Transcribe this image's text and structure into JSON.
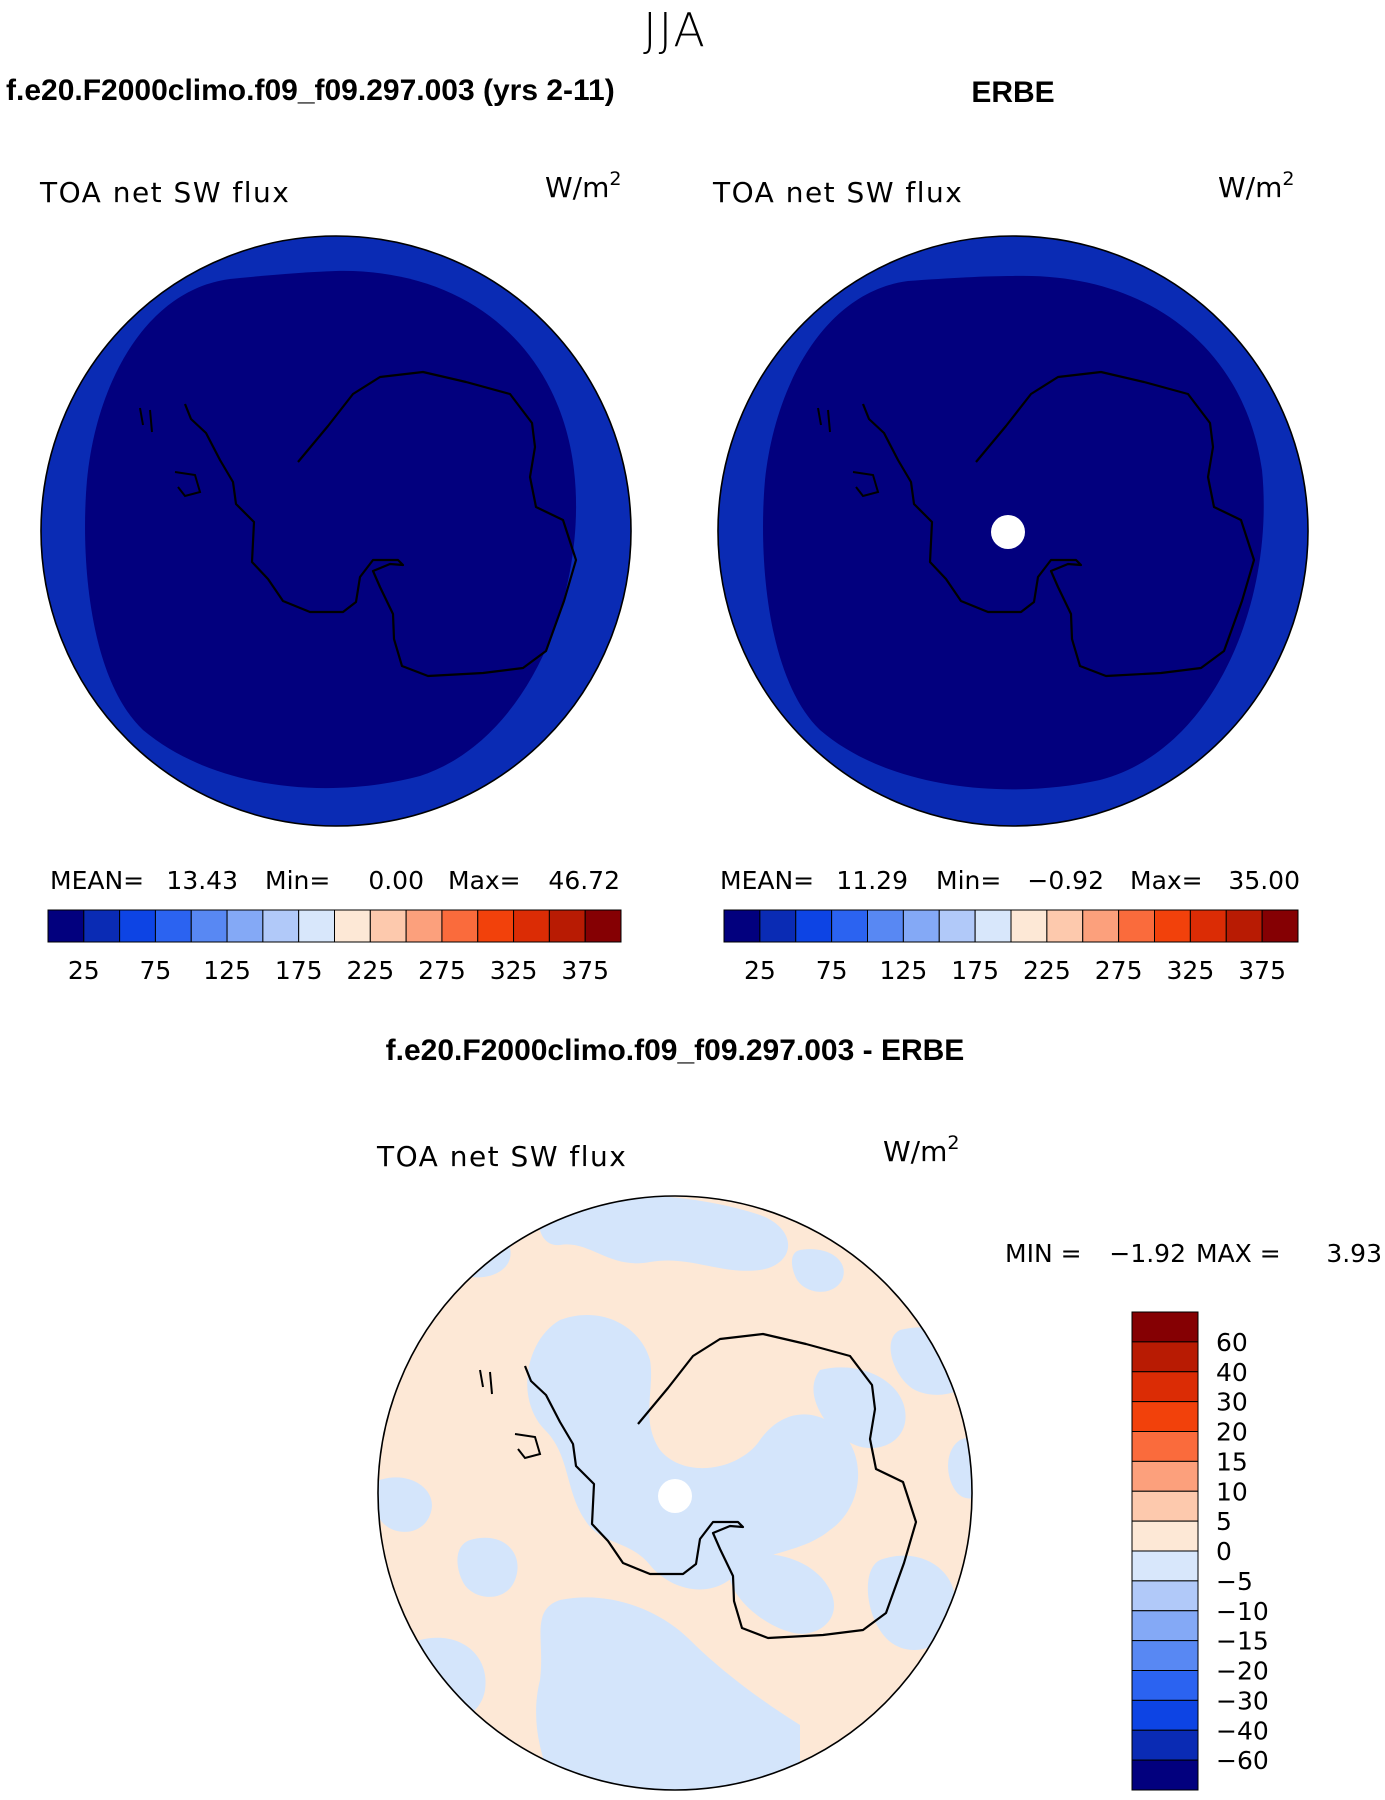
{
  "figure": {
    "season": "JJA",
    "colors": {
      "ocean_panel": "#0a2bb4",
      "ocean_core": "#02007e",
      "ice_pos": "#fde8d6",
      "ice_neg": "#d4e5fb",
      "coast": "#000000",
      "missing": "#ffffff"
    }
  },
  "panels": [
    {
      "id": "model",
      "header": "f.e20.F2000climo.f09_f09.297.003 (yrs 2-11)",
      "variable": "TOA net SW flux",
      "units": "W/m",
      "units_exp": "2",
      "stats": {
        "mean_label": "MEAN=",
        "mean": "13.43",
        "min_label": "Min=",
        "min": "0.00",
        "max_label": "Max=",
        "max": "46.72"
      }
    },
    {
      "id": "obs",
      "header": "ERBE",
      "variable": "TOA net SW flux",
      "units": "W/m",
      "units_exp": "2",
      "stats": {
        "mean_label": "MEAN=",
        "mean": "11.29",
        "min_label": "Min=",
        "min": "−0.92",
        "max_label": "Max=",
        "max": "35.00"
      }
    },
    {
      "id": "diff",
      "header": "f.e20.F2000climo.f09_f09.297.003 - ERBE",
      "variable": "TOA net SW flux",
      "units": "W/m",
      "units_exp": "2",
      "stats": {
        "min_label": "MIN =",
        "min": "−1.92",
        "max_label": "MAX =",
        "max": "3.93"
      }
    }
  ],
  "abs_colorbar": {
    "colors": [
      "#02007e",
      "#0a2bb4",
      "#0d44e4",
      "#2b63f1",
      "#5888f3",
      "#84a9f6",
      "#b1c9f9",
      "#d8e7fb",
      "#fde8d6",
      "#fdc9ad",
      "#fca07c",
      "#fa6b3c",
      "#f2410b",
      "#db2c05",
      "#b81b03",
      "#850003"
    ],
    "labels": [
      "25",
      "75",
      "125",
      "175",
      "225",
      "275",
      "325",
      "375"
    ]
  },
  "diff_colorbar": {
    "colors_top_to_bottom": [
      "#850003",
      "#b81b03",
      "#db2c05",
      "#f2410b",
      "#fa6b3c",
      "#fca07c",
      "#fdc9ad",
      "#fde8d6",
      "#d8e7fb",
      "#b1c9f9",
      "#84a9f6",
      "#5888f3",
      "#2b63f1",
      "#0d44e4",
      "#0a2bb4",
      "#02007e"
    ],
    "labels_top_to_bottom": [
      "60",
      "40",
      "30",
      "20",
      "15",
      "10",
      "5",
      "0",
      "−5",
      "−10",
      "−15",
      "−20",
      "−30",
      "−40",
      "−60"
    ]
  }
}
